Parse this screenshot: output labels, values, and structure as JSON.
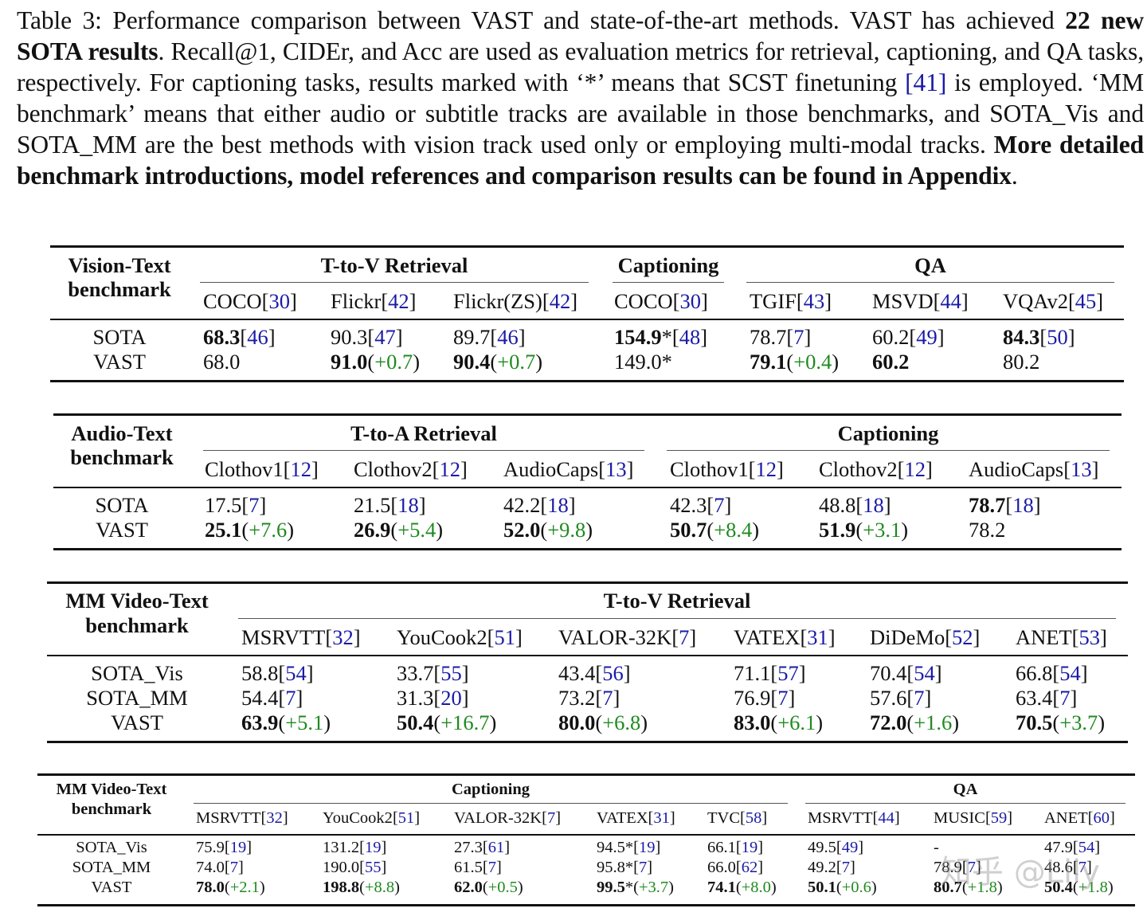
{
  "caption": {
    "label": "Table 3:",
    "intro": " Performance comparison between VAST and state-of-the-art methods. VAST has achieved ",
    "bold_1": "22 new SOTA results",
    "mid_1": ". Recall@1, CIDEr, and Acc are used as evaluation metrics for retrieval, captioning, and QA tasks, respectively. For captioning tasks, results marked with ‘*’ means that SCST finetuning ",
    "ref_41": "[41]",
    "mid_2": " is employed. ‘MM benchmark’ means that either audio or subtitle tracks are available in those benchmarks, and SOTA_Vis and SOTA_MM are the best methods with vision track used only or employing multi-modal tracks. ",
    "bold_2": "More detailed benchmark introductions, model references and comparison results can be found in Appendix",
    "end": "."
  },
  "colors": {
    "ref": "#1a1aa6",
    "gain": "#1f8a1f",
    "text": "#111111"
  },
  "tables": [
    {
      "id": "vision-text",
      "corner": [
        "Vision-Text",
        "benchmark"
      ],
      "groups": [
        {
          "label": "T-to-V Retrieval",
          "span": 3
        },
        {
          "label": "Captioning",
          "span": 1
        },
        {
          "label": "QA",
          "span": 3
        }
      ],
      "columns": [
        {
          "name": "COCO",
          "ref": "30"
        },
        {
          "name": "Flickr",
          "ref": "42"
        },
        {
          "name": "Flickr(ZS)",
          "ref": "42"
        },
        {
          "name": "COCO",
          "ref": "30"
        },
        {
          "name": "TGIF",
          "ref": "43"
        },
        {
          "name": "MSVD",
          "ref": "44"
        },
        {
          "name": "VQAv2",
          "ref": "45"
        }
      ],
      "rows": [
        {
          "label": "SOTA",
          "cells": [
            {
              "v": "68.3",
              "bold": true,
              "ref": "46"
            },
            {
              "v": "90.3",
              "ref": "47"
            },
            {
              "v": "89.7",
              "ref": "46"
            },
            {
              "v": "154.9",
              "bold": true,
              "star": "*",
              "ref": "48"
            },
            {
              "v": "78.7",
              "ref": "7"
            },
            {
              "v": "60.2",
              "ref": "49"
            },
            {
              "v": "84.3",
              "bold": true,
              "ref": "50"
            }
          ]
        },
        {
          "label": "VAST",
          "cells": [
            {
              "v": "68.0"
            },
            {
              "v": "91.0",
              "bold": true,
              "gain": "+0.7"
            },
            {
              "v": "90.4",
              "bold": true,
              "gain": "+0.7"
            },
            {
              "v": "149.0",
              "star": "*"
            },
            {
              "v": "79.1",
              "bold": true,
              "gain": "+0.4"
            },
            {
              "v": "60.2",
              "bold": true
            },
            {
              "v": "80.2"
            }
          ]
        }
      ]
    },
    {
      "id": "audio-text",
      "corner": [
        "Audio-Text",
        "benchmark"
      ],
      "groups": [
        {
          "label": "T-to-A Retrieval",
          "span": 3
        },
        {
          "label": "Captioning",
          "span": 3
        }
      ],
      "columns": [
        {
          "name": "Clothov1",
          "ref": "12"
        },
        {
          "name": "Clothov2",
          "ref": "12"
        },
        {
          "name": "AudioCaps",
          "ref": "13"
        },
        {
          "name": "Clothov1",
          "ref": "12"
        },
        {
          "name": "Clothov2",
          "ref": "12"
        },
        {
          "name": "AudioCaps",
          "ref": "13"
        }
      ],
      "rows": [
        {
          "label": "SOTA",
          "cells": [
            {
              "v": "17.5",
              "ref": "7"
            },
            {
              "v": "21.5",
              "ref": "18"
            },
            {
              "v": "42.2",
              "ref": "18"
            },
            {
              "v": "42.3",
              "ref": "7"
            },
            {
              "v": "48.8",
              "ref": "18"
            },
            {
              "v": "78.7",
              "bold": true,
              "ref": "18"
            }
          ]
        },
        {
          "label": "VAST",
          "cells": [
            {
              "v": "25.1",
              "bold": true,
              "gain": "+7.6"
            },
            {
              "v": "26.9",
              "bold": true,
              "gain": "+5.4"
            },
            {
              "v": "52.0",
              "bold": true,
              "gain": "+9.8"
            },
            {
              "v": "50.7",
              "bold": true,
              "gain": "+8.4"
            },
            {
              "v": "51.9",
              "bold": true,
              "gain": "+3.1"
            },
            {
              "v": "78.2"
            }
          ]
        }
      ]
    },
    {
      "id": "mm-video-retrieval",
      "corner": [
        "MM Video-Text",
        "benchmark"
      ],
      "groups": [
        {
          "label": "T-to-V Retrieval",
          "span": 6
        }
      ],
      "columns": [
        {
          "name": "MSRVTT",
          "ref": "32"
        },
        {
          "name": "YouCook2",
          "ref": "51"
        },
        {
          "name": "VALOR-32K",
          "ref": "7"
        },
        {
          "name": "VATEX",
          "ref": "31"
        },
        {
          "name": "DiDeMo",
          "ref": "52"
        },
        {
          "name": "ANET",
          "ref": "53"
        }
      ],
      "rows": [
        {
          "label": "SOTA_Vis",
          "cells": [
            {
              "v": "58.8",
              "ref": "54"
            },
            {
              "v": "33.7",
              "ref": "55"
            },
            {
              "v": "43.4",
              "ref": "56"
            },
            {
              "v": "71.1",
              "ref": "57"
            },
            {
              "v": "70.4",
              "ref": "54"
            },
            {
              "v": "66.8",
              "ref": "54"
            }
          ]
        },
        {
          "label": "SOTA_MM",
          "cells": [
            {
              "v": "54.4",
              "ref": "7"
            },
            {
              "v": "31.3",
              "ref": "20"
            },
            {
              "v": "73.2",
              "ref": "7"
            },
            {
              "v": "76.9",
              "ref": "7"
            },
            {
              "v": "57.6",
              "ref": "7"
            },
            {
              "v": "63.4",
              "ref": "7"
            }
          ]
        },
        {
          "label": "VAST",
          "cells": [
            {
              "v": "63.9",
              "bold": true,
              "gain": "+5.1"
            },
            {
              "v": "50.4",
              "bold": true,
              "gain": "+16.7"
            },
            {
              "v": "80.0",
              "bold": true,
              "gain": "+6.8"
            },
            {
              "v": "83.0",
              "bold": true,
              "gain": "+6.1"
            },
            {
              "v": "72.0",
              "bold": true,
              "gain": "+1.6"
            },
            {
              "v": "70.5",
              "bold": true,
              "gain": "+3.7"
            }
          ]
        }
      ]
    },
    {
      "id": "mm-video-caption-qa",
      "corner": [
        "MM Video-Text",
        "benchmark"
      ],
      "groups": [
        {
          "label": "Captioning",
          "span": 5
        },
        {
          "label": "QA",
          "span": 3
        }
      ],
      "columns": [
        {
          "name": "MSRVTT",
          "ref": "32"
        },
        {
          "name": "YouCook2",
          "ref": "51"
        },
        {
          "name": "VALOR-32K",
          "ref": "7"
        },
        {
          "name": "VATEX",
          "ref": "31"
        },
        {
          "name": "TVC",
          "ref": "58"
        },
        {
          "name": "MSRVTT",
          "ref": "44"
        },
        {
          "name": "MUSIC",
          "ref": "59"
        },
        {
          "name": "ANET",
          "ref": "60"
        }
      ],
      "rows": [
        {
          "label": "SOTA_Vis",
          "cells": [
            {
              "v": "75.9",
              "ref": "19"
            },
            {
              "v": "131.2",
              "ref": "19"
            },
            {
              "v": "27.3",
              "ref": "61"
            },
            {
              "v": "94.5",
              "star": "*",
              "ref": "19"
            },
            {
              "v": "66.1",
              "ref": "19"
            },
            {
              "v": "49.5",
              "ref": "49"
            },
            {
              "v": "-"
            },
            {
              "v": "47.9",
              "ref": "54"
            }
          ]
        },
        {
          "label": "SOTA_MM",
          "cells": [
            {
              "v": "74.0",
              "ref": "7"
            },
            {
              "v": "190.0",
              "ref": "55"
            },
            {
              "v": "61.5",
              "ref": "7"
            },
            {
              "v": "95.8",
              "star": "*",
              "ref": "7"
            },
            {
              "v": "66.0",
              "ref": "62"
            },
            {
              "v": "49.2",
              "ref": "7"
            },
            {
              "v": "78.9",
              "ref": "7"
            },
            {
              "v": "48.6",
              "ref": "7"
            }
          ]
        },
        {
          "label": "VAST",
          "cells": [
            {
              "v": "78.0",
              "bold": true,
              "gain": "+2.1"
            },
            {
              "v": "198.8",
              "bold": true,
              "gain": "+8.8"
            },
            {
              "v": "62.0",
              "bold": true,
              "gain": "+0.5"
            },
            {
              "v": "99.5",
              "bold": true,
              "star": "*",
              "gain": "+3.7"
            },
            {
              "v": "74.1",
              "bold": true,
              "gain": "+8.0"
            },
            {
              "v": "50.1",
              "bold": true,
              "gain": "+0.6"
            },
            {
              "v": "80.7",
              "bold": true,
              "gain": "+1.8"
            },
            {
              "v": "50.4",
              "bold": true,
              "gain": "+1.8"
            }
          ]
        }
      ]
    }
  ],
  "watermark": "知乎 @Lily"
}
